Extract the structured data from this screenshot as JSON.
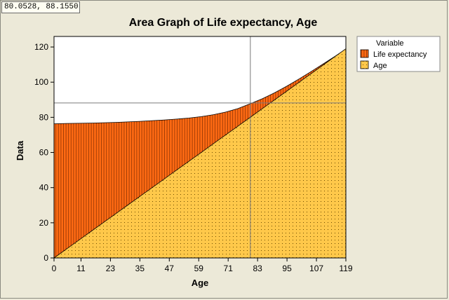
{
  "readout": "80.0528, 88.1550",
  "chart_data": {
    "type": "area",
    "title": "Area Graph of Life expectancy, Age",
    "xlabel": "Age",
    "ylabel": "Data",
    "xlim": [
      0,
      119
    ],
    "ylim": [
      0,
      126
    ],
    "xticks": [
      "0",
      "11",
      "23",
      "35",
      "47",
      "59",
      "71",
      "83",
      "95",
      "107",
      "119"
    ],
    "yticks": [
      "0",
      "20",
      "40",
      "60",
      "80",
      "100",
      "120"
    ],
    "stacked": false,
    "legend": {
      "title": "Variable",
      "placement": "right"
    },
    "crosshair": {
      "x": 80.0528,
      "y": 88.155
    },
    "x": [
      0,
      5,
      10,
      15,
      20,
      25,
      30,
      35,
      40,
      45,
      50,
      55,
      60,
      65,
      70,
      75,
      80,
      85,
      90,
      95,
      100,
      105,
      110,
      115,
      119
    ],
    "series": [
      {
        "name": "Life expectancy",
        "color": "#ff6a13",
        "pattern": "vertical-lines",
        "values": [
          76.3,
          76.5,
          76.6,
          76.7,
          76.9,
          77.1,
          77.4,
          77.7,
          78.1,
          78.5,
          79.0,
          79.6,
          80.4,
          81.5,
          83.0,
          85.0,
          87.7,
          90.6,
          94.0,
          97.8,
          101.9,
          106.2,
          110.6,
          115.1,
          118.8
        ]
      },
      {
        "name": "Age",
        "color": "#ffc84a",
        "pattern": "dots",
        "values": [
          0,
          5,
          10,
          15,
          20,
          25,
          30,
          35,
          40,
          45,
          50,
          55,
          60,
          65,
          70,
          75,
          80,
          85,
          90,
          95,
          100,
          105,
          110,
          115,
          119
        ]
      }
    ]
  }
}
